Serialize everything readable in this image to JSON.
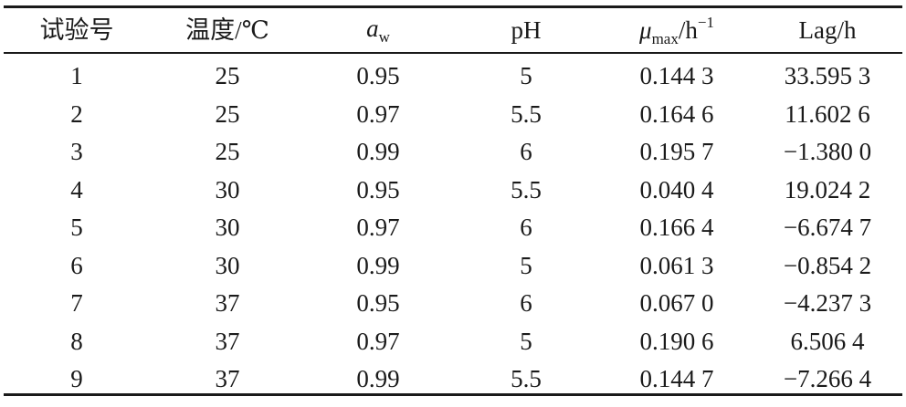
{
  "table": {
    "headers": {
      "col1": "试验号",
      "col2": "温度/℃",
      "col3_symbol": "a",
      "col3_sub": "w",
      "col4": "pH",
      "col5_symbol": "μ",
      "col5_sub": "max",
      "col5_unit": "/h",
      "col5_sup": "−1",
      "col6": "Lag/h"
    },
    "rows": [
      {
        "no": "1",
        "temp": "25",
        "aw": "0.95",
        "ph": "5",
        "mu": "0.144 3",
        "lag": "33.595 3"
      },
      {
        "no": "2",
        "temp": "25",
        "aw": "0.97",
        "ph": "5.5",
        "mu": "0.164 6",
        "lag": "11.602 6"
      },
      {
        "no": "3",
        "temp": "25",
        "aw": "0.99",
        "ph": "6",
        "mu": "0.195 7",
        "lag": "−1.380 0"
      },
      {
        "no": "4",
        "temp": "30",
        "aw": "0.95",
        "ph": "5.5",
        "mu": "0.040 4",
        "lag": "19.024 2"
      },
      {
        "no": "5",
        "temp": "30",
        "aw": "0.97",
        "ph": "6",
        "mu": "0.166 4",
        "lag": "−6.674 7"
      },
      {
        "no": "6",
        "temp": "30",
        "aw": "0.99",
        "ph": "5",
        "mu": "0.061 3",
        "lag": "−0.854 2"
      },
      {
        "no": "7",
        "temp": "37",
        "aw": "0.95",
        "ph": "6",
        "mu": "0.067 0",
        "lag": "−4.237 3"
      },
      {
        "no": "8",
        "temp": "37",
        "aw": "0.97",
        "ph": "5",
        "mu": "0.190 6",
        "lag": "6.506 4"
      },
      {
        "no": "9",
        "temp": "37",
        "aw": "0.99",
        "ph": "5.5",
        "mu": "0.144 7",
        "lag": "−7.266 4"
      }
    ]
  }
}
